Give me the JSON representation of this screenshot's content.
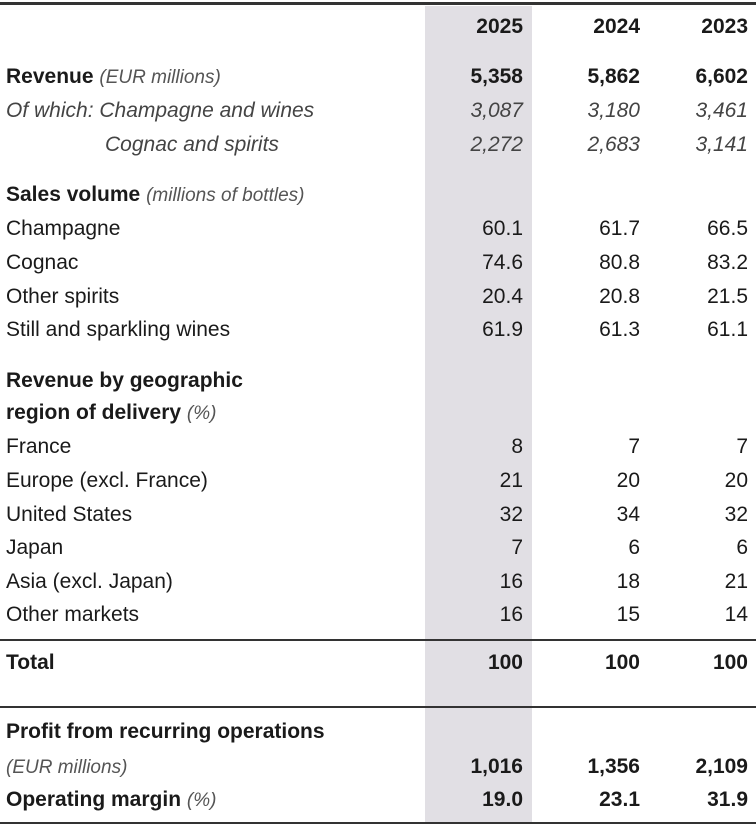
{
  "columns": [
    "2025",
    "2024",
    "2023"
  ],
  "rows": [
    {
      "label": "Revenue",
      "sub": "(EUR millions)",
      "values": [
        "5,358",
        "5,862",
        "6,602"
      ],
      "kind": "bold"
    },
    {
      "label": "Of which: Champagne and wines",
      "values": [
        "3,087",
        "3,180",
        "3,461"
      ],
      "kind": "italic"
    },
    {
      "label": "Cognac and spirits",
      "values": [
        "2,272",
        "2,683",
        "3,141"
      ],
      "kind": "italic-indent"
    },
    {
      "label": "Sales volume",
      "sub": "(millions of bottles)",
      "values": [],
      "kind": "heading"
    },
    {
      "label": "Champagne",
      "values": [
        "60.1",
        "61.7",
        "66.5"
      ]
    },
    {
      "label": "Cognac",
      "values": [
        "74.6",
        "80.8",
        "83.2"
      ]
    },
    {
      "label": "Other spirits",
      "values": [
        "20.4",
        "20.8",
        "21.5"
      ]
    },
    {
      "label": "Still and sparkling wines",
      "values": [
        "61.9",
        "61.3",
        "61.1"
      ]
    },
    {
      "label": "Revenue by geographic",
      "values": [],
      "kind": "heading"
    },
    {
      "label": "region of delivery",
      "sub": "(%)",
      "values": [],
      "kind": "heading"
    },
    {
      "label": "France",
      "values": [
        "8",
        "7",
        "7"
      ]
    },
    {
      "label": "Europe (excl. France)",
      "values": [
        "21",
        "20",
        "20"
      ]
    },
    {
      "label": "United States",
      "values": [
        "32",
        "34",
        "32"
      ]
    },
    {
      "label": "Japan",
      "values": [
        "7",
        "6",
        "6"
      ]
    },
    {
      "label": "Asia (excl. Japan)",
      "values": [
        "16",
        "18",
        "21"
      ]
    },
    {
      "label": "Other markets",
      "values": [
        "16",
        "15",
        "14"
      ]
    },
    {
      "label": "Total",
      "values": [
        "100",
        "100",
        "100"
      ],
      "kind": "bold"
    },
    {
      "label": "Profit from recurring operations",
      "values": [],
      "kind": "heading"
    },
    {
      "label": "",
      "sub": "(EUR millions)",
      "values": [
        "1,016",
        "1,356",
        "2,109"
      ],
      "kind": "bold"
    },
    {
      "label": "Operating margin",
      "sub": "(%)",
      "values": [
        "19.0",
        "23.1",
        "31.9"
      ],
      "kind": "bold"
    }
  ]
}
